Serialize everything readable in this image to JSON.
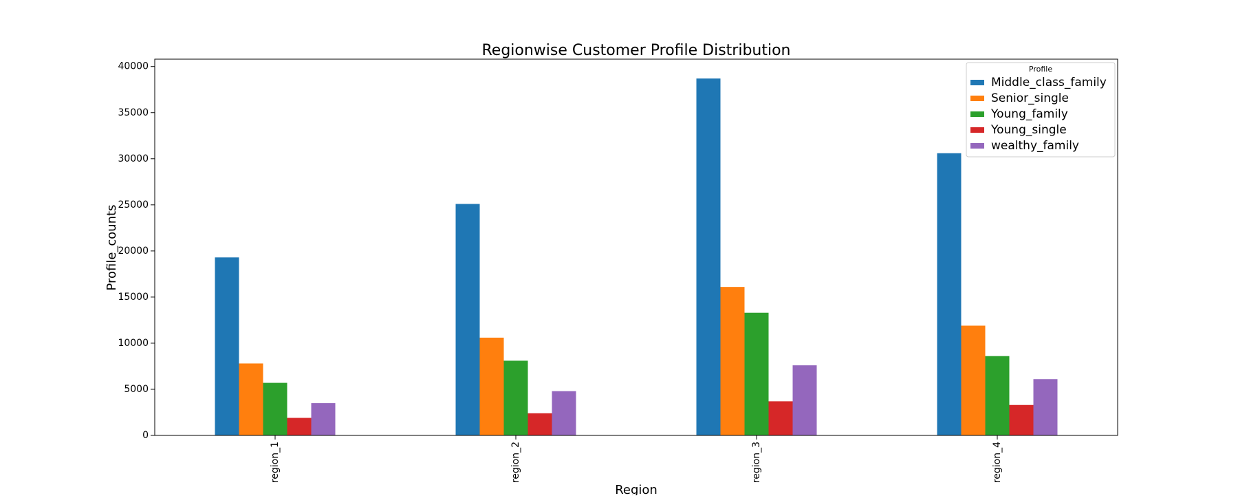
{
  "chart_data": {
    "type": "bar",
    "title": "Regionwise Customer Profile Distribution",
    "xlabel": "Region",
    "ylabel": "Profile_counts",
    "categories": [
      "region_1",
      "region_2",
      "region_3",
      "region_4"
    ],
    "series": [
      {
        "name": "Middle_class_family",
        "color": "#1f77b4",
        "values": [
          19300,
          25100,
          38700,
          30600
        ]
      },
      {
        "name": "Senior_single",
        "color": "#ff7f0e",
        "values": [
          7800,
          10600,
          16100,
          11900
        ]
      },
      {
        "name": "Young_family",
        "color": "#2ca02c",
        "values": [
          5700,
          8100,
          13300,
          8600
        ]
      },
      {
        "name": "Young_single",
        "color": "#d62728",
        "values": [
          1900,
          2400,
          3700,
          3300
        ]
      },
      {
        "name": "wealthy_family",
        "color": "#9467bd",
        "values": [
          3500,
          4800,
          7600,
          6100
        ]
      }
    ],
    "ylim": [
      0,
      40800
    ],
    "yticks": [
      0,
      5000,
      10000,
      15000,
      20000,
      25000,
      30000,
      35000,
      40000
    ],
    "grid": false,
    "legend": {
      "title": "Profile",
      "placement": "top-right"
    }
  }
}
